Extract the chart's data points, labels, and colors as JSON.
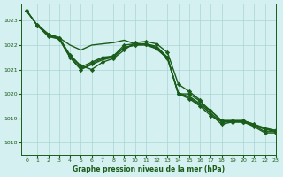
{
  "title": "Graphe pression niveau de la mer (hPa)",
  "background_color": "#d5f0f0",
  "grid_color": "#aad4d4",
  "line_color": "#1a5c1a",
  "xlim": [
    -0.5,
    23
  ],
  "ylim": [
    1017.5,
    1023.7
  ],
  "yticks": [
    1018,
    1019,
    1020,
    1021,
    1022,
    1023
  ],
  "xticks": [
    0,
    1,
    2,
    3,
    4,
    5,
    6,
    7,
    8,
    9,
    10,
    11,
    12,
    13,
    14,
    15,
    16,
    17,
    18,
    19,
    20,
    21,
    22,
    23
  ],
  "series": [
    {
      "x": [
        0,
        1,
        2,
        3,
        4,
        5,
        6,
        7,
        8,
        9,
        10,
        11,
        12,
        13,
        14,
        15,
        16,
        17,
        18,
        19,
        20,
        21,
        22,
        23
      ],
      "y": [
        1023.4,
        1022.8,
        1022.45,
        1022.3,
        1022.0,
        1021.8,
        1022.0,
        1022.05,
        1022.1,
        1022.2,
        1022.05,
        1022.05,
        1021.95,
        1021.5,
        1020.0,
        1019.9,
        1019.6,
        1019.3,
        1018.9,
        1018.9,
        1018.9,
        1018.75,
        1018.6,
        1018.5
      ],
      "marker": false,
      "lw": 1.0
    },
    {
      "x": [
        0,
        1,
        2,
        3,
        4,
        5,
        6,
        7,
        8,
        9,
        10,
        11,
        12,
        13,
        14,
        15,
        16,
        17,
        18,
        19,
        20,
        21,
        22,
        23
      ],
      "y": [
        1023.4,
        1022.8,
        1022.45,
        1022.3,
        1021.55,
        1021.1,
        1021.3,
        1021.5,
        1021.55,
        1022.0,
        1022.05,
        1022.05,
        1021.9,
        1021.5,
        1020.0,
        1020.0,
        1019.7,
        1019.3,
        1018.9,
        1018.9,
        1018.9,
        1018.75,
        1018.55,
        1018.5
      ],
      "marker": true,
      "lw": 1.0
    },
    {
      "x": [
        0,
        1,
        2,
        3,
        4,
        5,
        6,
        7,
        8,
        9,
        10,
        11,
        12,
        13,
        14,
        15,
        16,
        17,
        18,
        19,
        20,
        21,
        22,
        23
      ],
      "y": [
        1023.4,
        1022.8,
        1022.4,
        1022.25,
        1021.5,
        1021.0,
        1021.2,
        1021.4,
        1021.5,
        1021.9,
        1022.0,
        1022.0,
        1021.85,
        1021.45,
        1020.05,
        1019.85,
        1019.55,
        1019.2,
        1018.85,
        1018.85,
        1018.85,
        1018.7,
        1018.45,
        1018.45
      ],
      "marker": false,
      "lw": 1.0
    },
    {
      "x": [
        0,
        1,
        2,
        3,
        4,
        5,
        6,
        7,
        8,
        9,
        10,
        11,
        12,
        13,
        14,
        15,
        16,
        17,
        18,
        19,
        20,
        21,
        22,
        23
      ],
      "y": [
        1023.4,
        1022.8,
        1022.35,
        1022.25,
        1021.5,
        1021.0,
        1021.25,
        1021.45,
        1021.55,
        1021.9,
        1022.0,
        1022.05,
        1021.85,
        1021.45,
        1020.0,
        1019.8,
        1019.5,
        1019.1,
        1018.85,
        1018.85,
        1018.85,
        1018.65,
        1018.4,
        1018.4
      ],
      "marker": true,
      "lw": 1.0
    },
    {
      "x": [
        1,
        2,
        3,
        4,
        5,
        6,
        7,
        8,
        9,
        10,
        11,
        12,
        13,
        14,
        15,
        16,
        17,
        18,
        19,
        20,
        21,
        22,
        23
      ],
      "y": [
        1022.85,
        1022.45,
        1022.3,
        1021.6,
        1021.15,
        1021.0,
        1021.3,
        1021.45,
        1021.8,
        1022.1,
        1022.15,
        1022.05,
        1021.7,
        1020.4,
        1020.1,
        1019.75,
        1019.15,
        1018.75,
        1018.85,
        1018.85,
        1018.7,
        1018.55,
        1018.45
      ],
      "marker": true,
      "lw": 1.0
    }
  ]
}
